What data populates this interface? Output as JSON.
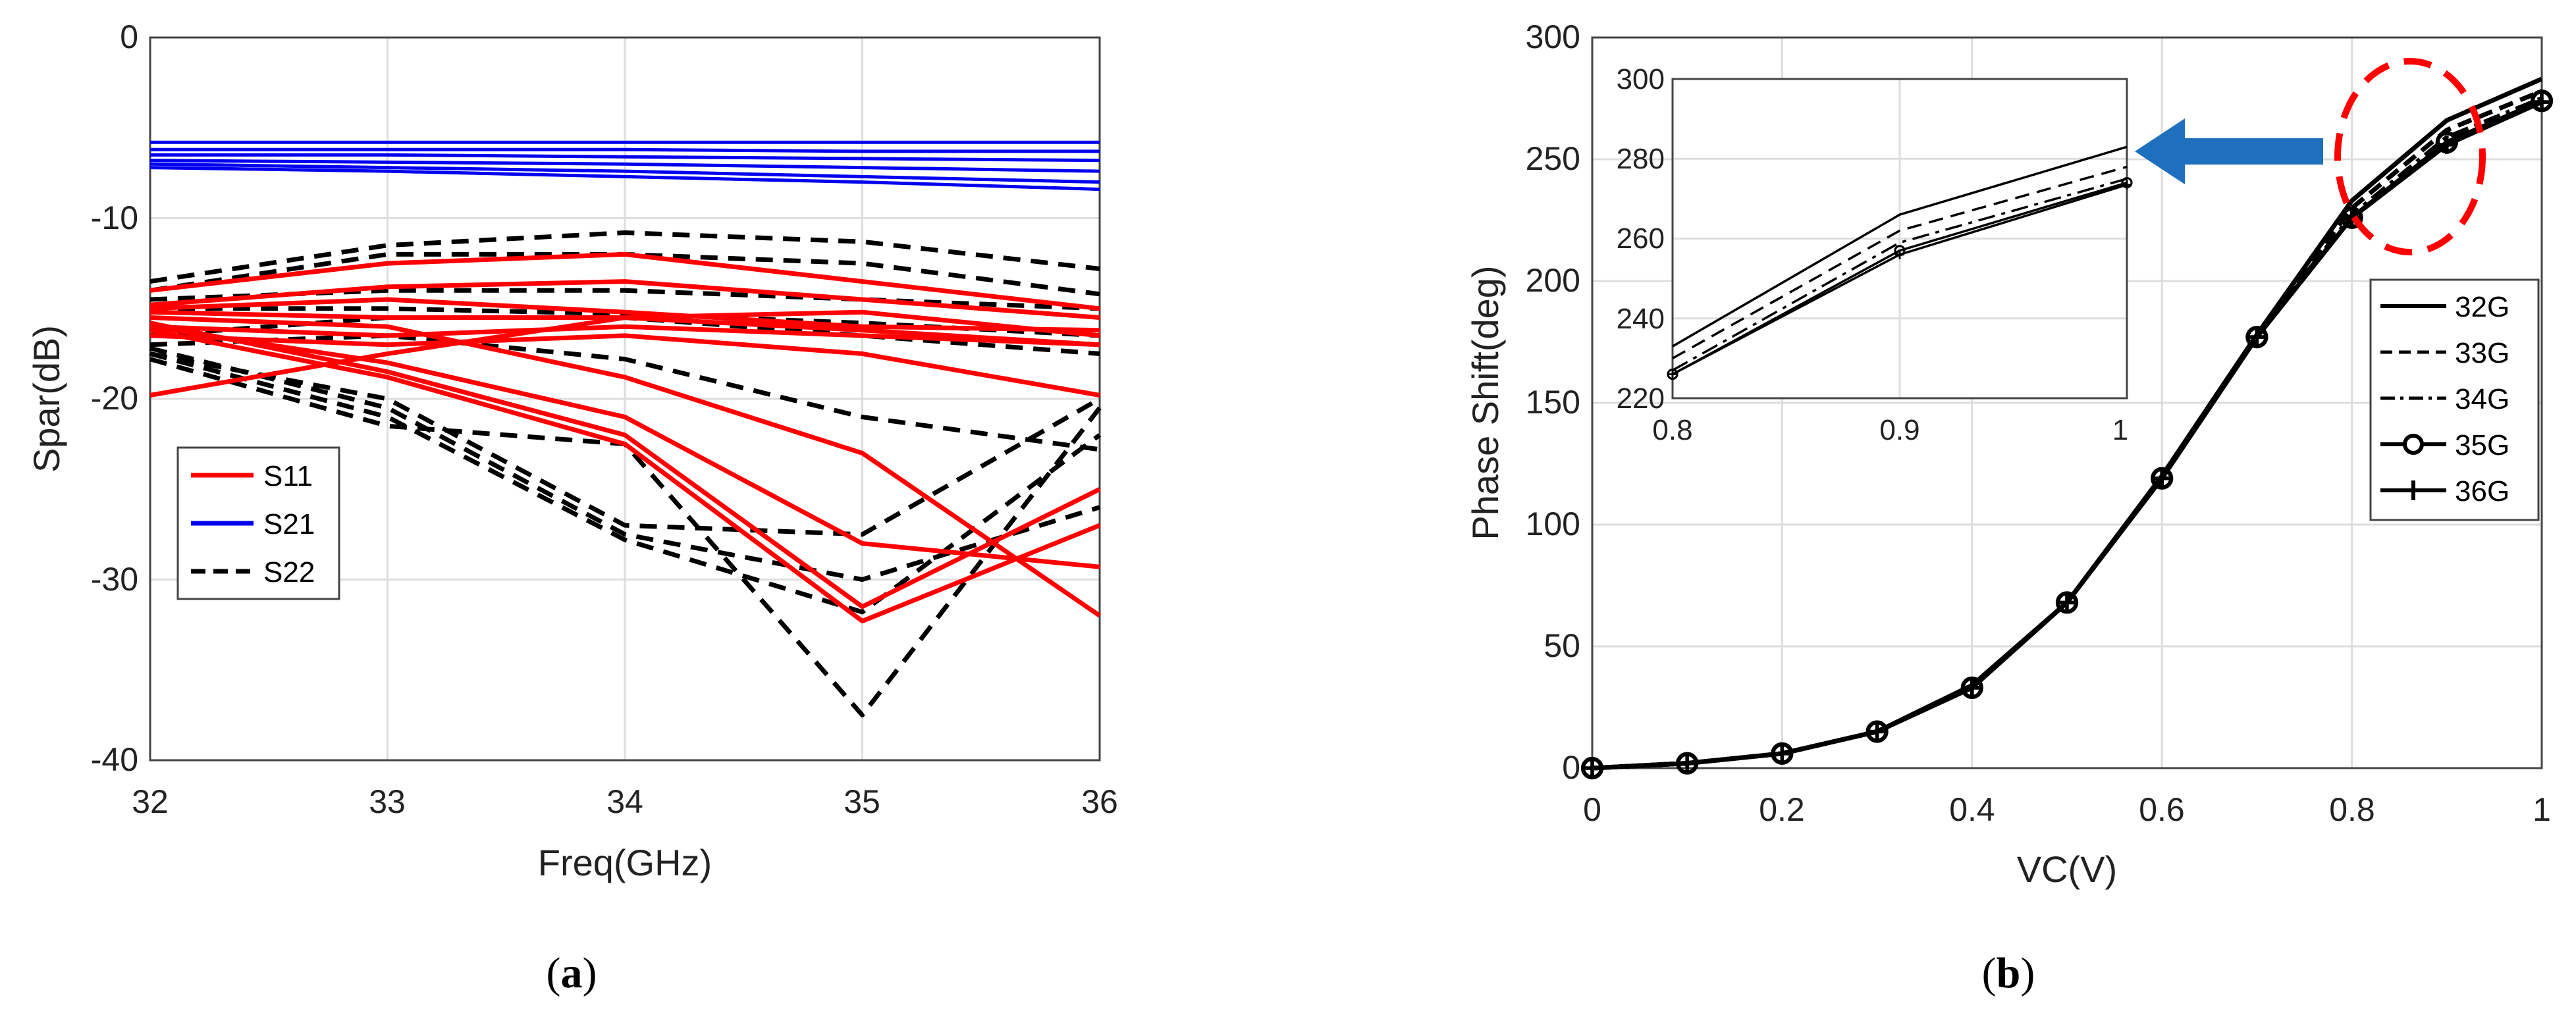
{
  "colors": {
    "s11": "#ff0000",
    "s21": "#0000ee",
    "s22": "#000000",
    "phase": "#000000",
    "arrow": "#1f6fbf",
    "highlight": "#ff0000"
  },
  "chart_data": [
    {
      "type": "line",
      "panel": "a",
      "caption_letter": "a",
      "xlabel": "Freq(GHz)",
      "ylabel": "Spar(dB)",
      "xlim": [
        32,
        36
      ],
      "ylim": [
        -40,
        0
      ],
      "xticks": [
        "32",
        "33",
        "34",
        "35",
        "36"
      ],
      "yticks": [
        "0",
        "-10",
        "-20",
        "-30",
        "-40"
      ],
      "grid": true,
      "legend_position": "lower-left",
      "x": [
        32,
        33,
        34,
        35,
        36
      ],
      "legend": [
        {
          "label": "S11",
          "group": "s11",
          "dash": "solid"
        },
        {
          "label": "S21",
          "group": "s21",
          "dash": "solid"
        },
        {
          "label": "S22",
          "group": "s22",
          "dash": "dashed"
        }
      ],
      "series": [
        {
          "name": "S11",
          "group": "s11",
          "values": [
            -14.0,
            -12.5,
            -12.0,
            -13.5,
            -15.0
          ]
        },
        {
          "name": "S11",
          "group": "s11",
          "values": [
            -14.8,
            -13.8,
            -13.5,
            -14.5,
            -15.5
          ]
        },
        {
          "name": "S11",
          "group": "s11",
          "values": [
            -15.2,
            -15.5,
            -15.5,
            -15.2,
            -16.5
          ]
        },
        {
          "name": "S11",
          "group": "s11",
          "values": [
            -16.0,
            -16.5,
            -16.0,
            -16.5,
            -17.0
          ]
        },
        {
          "name": "S11",
          "group": "s11",
          "values": [
            -19.8,
            -17.5,
            -15.5,
            -16.2,
            -17.0
          ]
        },
        {
          "name": "S11",
          "group": "s11",
          "values": [
            -15.5,
            -16.0,
            -18.8,
            -23.0,
            -32.0
          ]
        },
        {
          "name": "S11",
          "group": "s11",
          "values": [
            -16.5,
            -17.0,
            -16.5,
            -17.5,
            -19.8
          ]
        },
        {
          "name": "S11",
          "group": "s11",
          "values": [
            -16.0,
            -18.0,
            -21.0,
            -28.0,
            -29.3
          ]
        },
        {
          "name": "S11",
          "group": "s11",
          "values": [
            -15.8,
            -18.5,
            -22.0,
            -31.5,
            -25.0
          ]
        },
        {
          "name": "S11",
          "group": "s11",
          "values": [
            -16.2,
            -18.8,
            -22.5,
            -32.3,
            -27.0
          ]
        },
        {
          "name": "S11",
          "group": "s11",
          "values": [
            -15.0,
            -14.5,
            -15.2,
            -16.0,
            -16.2
          ]
        },
        {
          "name": "S21",
          "group": "s21",
          "values": [
            -5.8,
            -5.8,
            -5.8,
            -5.8,
            -5.8
          ]
        },
        {
          "name": "S21",
          "group": "s21",
          "values": [
            -6.2,
            -6.2,
            -6.2,
            -6.3,
            -6.3
          ]
        },
        {
          "name": "S21",
          "group": "s21",
          "values": [
            -6.5,
            -6.5,
            -6.6,
            -6.7,
            -6.8
          ]
        },
        {
          "name": "S21",
          "group": "s21",
          "values": [
            -6.8,
            -6.9,
            -7.0,
            -7.2,
            -7.4
          ]
        },
        {
          "name": "S21",
          "group": "s21",
          "values": [
            -7.0,
            -7.2,
            -7.4,
            -7.7,
            -8.0
          ]
        },
        {
          "name": "S21",
          "group": "s21",
          "values": [
            -7.2,
            -7.4,
            -7.7,
            -8.0,
            -8.4
          ]
        },
        {
          "name": "S22",
          "group": "s22",
          "values": [
            -13.5,
            -11.5,
            -10.8,
            -11.3,
            -12.8
          ]
        },
        {
          "name": "S22",
          "group": "s22",
          "values": [
            -14.0,
            -12.0,
            -12.0,
            -12.5,
            -14.2
          ]
        },
        {
          "name": "S22",
          "group": "s22",
          "values": [
            -14.5,
            -14.0,
            -14.0,
            -14.5,
            -15.0
          ]
        },
        {
          "name": "S22",
          "group": "s22",
          "values": [
            -15.0,
            -15.0,
            -15.3,
            -15.8,
            -16.5
          ]
        },
        {
          "name": "S22",
          "group": "s22",
          "values": [
            -16.5,
            -15.5,
            -15.5,
            -16.5,
            -17.5
          ]
        },
        {
          "name": "S22",
          "group": "s22",
          "values": [
            -17.0,
            -16.5,
            -17.8,
            -21.0,
            -22.8
          ]
        },
        {
          "name": "S22",
          "group": "s22",
          "values": [
            -17.5,
            -20.0,
            -27.0,
            -27.5,
            -20.0
          ]
        },
        {
          "name": "S22",
          "group": "s22",
          "values": [
            -17.5,
            -21.0,
            -27.8,
            -31.8,
            -22.0
          ]
        },
        {
          "name": "S22",
          "group": "s22",
          "values": [
            -17.8,
            -21.5,
            -22.5,
            -37.5,
            -20.5
          ]
        },
        {
          "name": "S22",
          "group": "s22",
          "values": [
            -17.2,
            -20.5,
            -27.5,
            -30.0,
            -26.0
          ]
        }
      ]
    },
    {
      "type": "line",
      "panel": "b",
      "caption_letter": "b",
      "xlabel": "VC(V)",
      "ylabel": "Phase Shift(deg)",
      "xlim": [
        0,
        1
      ],
      "ylim": [
        0,
        300
      ],
      "xticks": [
        "0",
        "0.2",
        "0.4",
        "0.6",
        "0.8",
        "1"
      ],
      "yticks": [
        "0",
        "50",
        "100",
        "150",
        "200",
        "250",
        "300"
      ],
      "grid": true,
      "legend_position": "right",
      "x": [
        0,
        0.1,
        0.2,
        0.3,
        0.4,
        0.5,
        0.6,
        0.7,
        0.8,
        0.9,
        1.0
      ],
      "series": [
        {
          "name": "32G",
          "style": "solid",
          "values": [
            0,
            2,
            6,
            15,
            34,
            68,
            120,
            178,
            233,
            266,
            283
          ]
        },
        {
          "name": "33G",
          "style": "dashed",
          "values": [
            0,
            2,
            6,
            15,
            33.5,
            68,
            119.5,
            177.5,
            230,
            262,
            278
          ]
        },
        {
          "name": "34G",
          "style": "dashdot",
          "values": [
            0,
            2,
            6,
            15,
            33.5,
            68,
            119.5,
            177.5,
            227,
            259,
            275
          ]
        },
        {
          "name": "35G",
          "style": "circle",
          "values": [
            0,
            2,
            6,
            15,
            33,
            68,
            119,
            177,
            226,
            257,
            274
          ]
        },
        {
          "name": "36G",
          "style": "plus",
          "values": [
            0,
            2,
            6,
            15,
            33,
            68,
            119,
            177,
            226,
            256,
            273.5
          ]
        }
      ],
      "inset": {
        "xlim": [
          0.8,
          1.0
        ],
        "ylim": [
          220,
          300
        ],
        "xticks": [
          "0.8",
          "0.9",
          "1"
        ],
        "yticks": [
          "220",
          "240",
          "260",
          "280",
          "300"
        ]
      },
      "annotation": "dashed red ellipse around curves near VC = 0.8–1 V with a blue arrow pointing to the zoomed inset"
    }
  ]
}
